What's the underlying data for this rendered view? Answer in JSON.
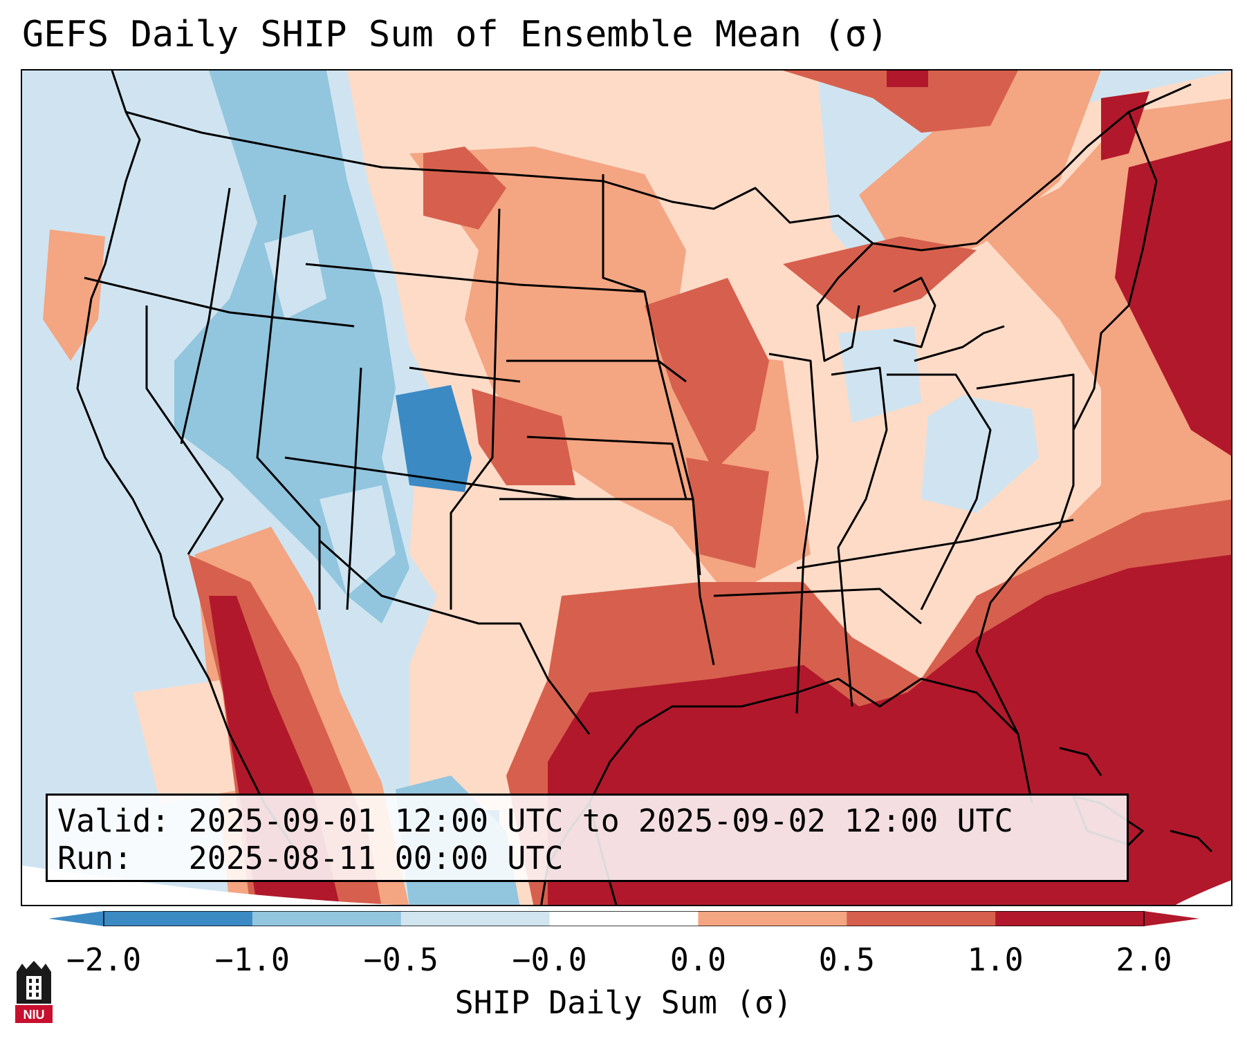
{
  "title": "GEFS Daily SHIP Sum of Ensemble Mean (σ)",
  "info": {
    "valid_label": "Valid:",
    "valid_value": "2025-09-01 12:00 UTC to 2025-09-02 12:00 UTC",
    "run_label": "Run:",
    "run_value": "2025-08-11 00:00 UTC"
  },
  "colorbar": {
    "label": "SHIP Daily Sum (σ)",
    "ticks": [
      "−2.0",
      "−1.0",
      "−0.5",
      "−0.0",
      "0.0",
      "0.5",
      "1.0",
      "2.0"
    ],
    "colors": [
      "#3b8ac4",
      "#92c5de",
      "#d1e5f0",
      "#ffffff",
      "#fddbc7",
      "#f4a582",
      "#d6604d",
      "#b2182b"
    ],
    "under_color": "#3b8ac4",
    "over_color": "#b2182b"
  },
  "legend_colors": {
    "very_negative": "#3b8ac4",
    "negative": "#92c5de",
    "slightly_negative": "#d1e5f0",
    "slightly_positive": "#fddbc7",
    "positive": "#f4a582",
    "high": "#d6604d",
    "very_high": "#b2182b"
  },
  "logo": {
    "text": "NIU",
    "name": "niu-logo"
  }
}
